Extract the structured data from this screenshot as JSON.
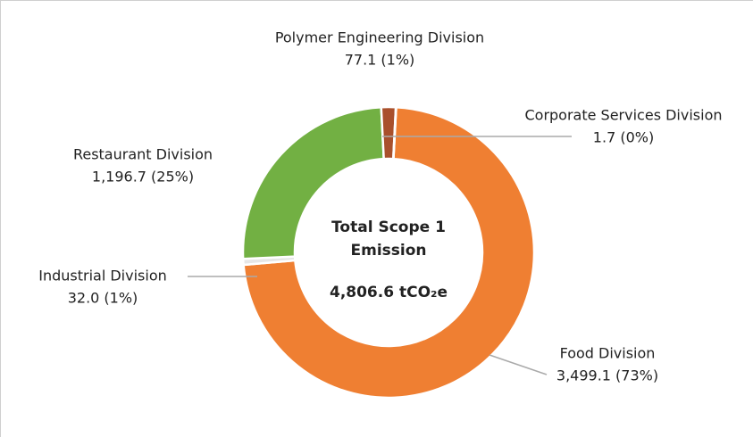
{
  "chart_data": {
    "type": "donut",
    "categories": [
      "Food Division",
      "Industrial Division",
      "Restaurant Division",
      "Polymer Engineering Division",
      "Corporate Services Division"
    ],
    "values": [
      3499.1,
      32.0,
      1196.7,
      77.1,
      1.7
    ],
    "value_labels": [
      "3,499.1 (73%)",
      "32.0 (1%)",
      "1,196.7 (25%)",
      "77.1 (1%)",
      "1.7 (0%)"
    ],
    "colors": [
      "#ef7f32",
      "#e6e6e6",
      "#72b043",
      "#a9502c",
      "#e8c9b8"
    ],
    "center_title": "Total Scope 1 Emission",
    "center_total": "4,806.6 tCO₂e"
  }
}
